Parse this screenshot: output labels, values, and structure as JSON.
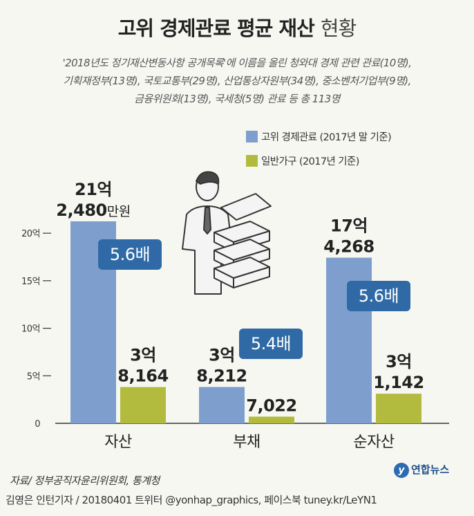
{
  "title": {
    "main": "고위 경제관료 평균 재산",
    "light": "현황"
  },
  "subtitle_lines": [
    "'2018년도 정기재산변동사항 공개목록'에 이름을 올린 청와대 경제 관련 관료(10명),",
    "기획재정부(13명), 국토교통부(29명), 산업통상자원부(34명), 중소벤처기업부(9명),",
    "금융위원회(13명),  국세청(5명) 관료 등 총 113명"
  ],
  "legend": [
    {
      "label": "고위 경제관료 (2017년 말 기준)",
      "color": "#7e9fcd"
    },
    {
      "label": "일반가구 (2017년 기준)",
      "color": "#b2bb3e"
    }
  ],
  "chart_data": {
    "type": "bar",
    "categories": [
      "자산",
      "부채",
      "순자산"
    ],
    "series": [
      {
        "name": "고위 경제관료 (2017년 말 기준)",
        "values": [
          212480,
          38212,
          174268
        ],
        "color": "#7e9fcd",
        "labels": [
          [
            "21억",
            "2,480",
            "만원"
          ],
          [
            "3억",
            "8,212",
            ""
          ],
          [
            "17억",
            "4,268",
            ""
          ]
        ]
      },
      {
        "name": "일반가구 (2017년 기준)",
        "values": [
          38164,
          7022,
          31142
        ],
        "color": "#b2bb3e",
        "labels": [
          [
            "3억",
            "8,164",
            ""
          ],
          [
            "",
            "7,022",
            ""
          ],
          [
            "3억",
            "1,142",
            ""
          ]
        ]
      }
    ],
    "yticks": [
      0,
      50000,
      100000,
      150000,
      200000
    ],
    "ytick_labels": [
      "0",
      "5억",
      "10억",
      "15억",
      "20억"
    ],
    "ylim": [
      0,
      212480
    ],
    "ratios": [
      "5.6배",
      "5.4배",
      "5.6배"
    ],
    "ratio_color": "#2f6aa6"
  },
  "source": "자료/ 정부공직자윤리위원회, 통계청",
  "credits": "김영은 인턴기자 / 20180401   트위터 @yonhap_graphics, 페이스북 tuney.kr/LeYN1",
  "logo": {
    "mark": "y",
    "text": "연합뉴스"
  }
}
